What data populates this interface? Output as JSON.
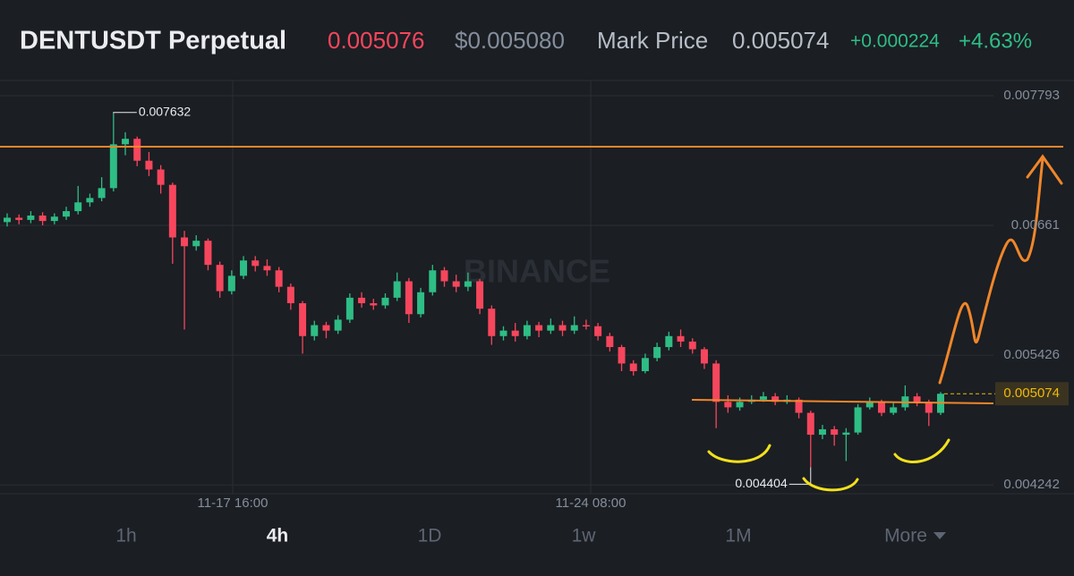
{
  "header": {
    "symbol": "DENTUSDT Perpetual",
    "last_price": "0.005076",
    "index_price": "$0.005080",
    "mark_label": "Mark Price",
    "mark_price": "0.005074",
    "change": "+0.000224",
    "change_pct": "+4.63%"
  },
  "chart_data": {
    "type": "candlestick",
    "ylim": [
      0.004162,
      0.007932
    ],
    "yticks": [
      0.007793,
      0.00661,
      0.005426,
      0.004242
    ],
    "time_labels": [
      "11-17 16:00",
      "11-24 08:00"
    ],
    "watermark": "BINANCE",
    "up_color": "#2ebd85",
    "down_color": "#f6465d",
    "high_label": 0.007632,
    "low_label": 0.004404,
    "price_tag": 0.005074,
    "ohlc": [
      [
        0.00664,
        0.00672,
        0.0066,
        0.00668
      ],
      [
        0.00668,
        0.00671,
        0.00662,
        0.00666
      ],
      [
        0.00666,
        0.00674,
        0.00663,
        0.0067
      ],
      [
        0.0067,
        0.00673,
        0.00661,
        0.00665
      ],
      [
        0.00665,
        0.00672,
        0.00662,
        0.00669
      ],
      [
        0.00669,
        0.00678,
        0.00666,
        0.00674
      ],
      [
        0.00674,
        0.00697,
        0.00671,
        0.00682
      ],
      [
        0.00682,
        0.0069,
        0.00678,
        0.00686
      ],
      [
        0.00686,
        0.00705,
        0.00683,
        0.00695
      ],
      [
        0.00695,
        0.007632,
        0.00692,
        0.00735
      ],
      [
        0.00735,
        0.00746,
        0.00725,
        0.0074
      ],
      [
        0.0074,
        0.00742,
        0.00715,
        0.0072
      ],
      [
        0.0072,
        0.00728,
        0.00706,
        0.00712
      ],
      [
        0.00712,
        0.00716,
        0.0069,
        0.00698
      ],
      [
        0.00698,
        0.007,
        0.00626,
        0.0065
      ],
      [
        0.0065,
        0.00656,
        0.00566,
        0.00642
      ],
      [
        0.00642,
        0.00652,
        0.00638,
        0.00647
      ],
      [
        0.00647,
        0.00649,
        0.0062,
        0.00625
      ],
      [
        0.00625,
        0.00628,
        0.00595,
        0.00601
      ],
      [
        0.00601,
        0.0062,
        0.00598,
        0.00615
      ],
      [
        0.00615,
        0.00633,
        0.00612,
        0.00629
      ],
      [
        0.00629,
        0.00633,
        0.00619,
        0.00624
      ],
      [
        0.00624,
        0.0063,
        0.00615,
        0.0062
      ],
      [
        0.0062,
        0.00623,
        0.006,
        0.00605
      ],
      [
        0.00605,
        0.00608,
        0.00584,
        0.0059
      ],
      [
        0.0059,
        0.00592,
        0.00544,
        0.0056
      ],
      [
        0.0056,
        0.00574,
        0.00556,
        0.0057
      ],
      [
        0.0057,
        0.00573,
        0.00558,
        0.00565
      ],
      [
        0.00565,
        0.00579,
        0.00562,
        0.00575
      ],
      [
        0.00575,
        0.00599,
        0.00572,
        0.00595
      ],
      [
        0.00595,
        0.006,
        0.00586,
        0.0059
      ],
      [
        0.0059,
        0.00594,
        0.00584,
        0.00588
      ],
      [
        0.00588,
        0.00599,
        0.00585,
        0.00595
      ],
      [
        0.00595,
        0.00618,
        0.00592,
        0.0061
      ],
      [
        0.0061,
        0.00613,
        0.00572,
        0.0058
      ],
      [
        0.0058,
        0.00604,
        0.00577,
        0.006
      ],
      [
        0.006,
        0.00625,
        0.00597,
        0.0062
      ],
      [
        0.0062,
        0.00623,
        0.00605,
        0.0061
      ],
      [
        0.0061,
        0.00616,
        0.006,
        0.00605
      ],
      [
        0.00605,
        0.00618,
        0.00601,
        0.0061
      ],
      [
        0.0061,
        0.00612,
        0.0058,
        0.00585
      ],
      [
        0.00585,
        0.00588,
        0.00552,
        0.0056
      ],
      [
        0.0056,
        0.00569,
        0.00556,
        0.00565
      ],
      [
        0.00565,
        0.00572,
        0.00555,
        0.0056
      ],
      [
        0.0056,
        0.00574,
        0.00557,
        0.0057
      ],
      [
        0.0057,
        0.00573,
        0.00559,
        0.00565
      ],
      [
        0.00565,
        0.00576,
        0.00562,
        0.0057
      ],
      [
        0.0057,
        0.00574,
        0.0056,
        0.00565
      ],
      [
        0.00565,
        0.00578,
        0.00562,
        0.0057
      ],
      [
        0.0057,
        0.00575,
        0.00566,
        0.00569
      ],
      [
        0.00569,
        0.00572,
        0.00556,
        0.0056
      ],
      [
        0.0056,
        0.00563,
        0.00546,
        0.0055
      ],
      [
        0.0055,
        0.00552,
        0.00528,
        0.00535
      ],
      [
        0.00535,
        0.00538,
        0.00524,
        0.00528
      ],
      [
        0.00528,
        0.00544,
        0.00526,
        0.0054
      ],
      [
        0.0054,
        0.00554,
        0.00537,
        0.0055
      ],
      [
        0.0055,
        0.00564,
        0.00547,
        0.0056
      ],
      [
        0.0056,
        0.00566,
        0.0055,
        0.00555
      ],
      [
        0.00555,
        0.00558,
        0.00544,
        0.00548
      ],
      [
        0.00548,
        0.0055,
        0.0053,
        0.00535
      ],
      [
        0.00535,
        0.00538,
        0.00476,
        0.005
      ],
      [
        0.005,
        0.00506,
        0.0049,
        0.00495
      ],
      [
        0.00495,
        0.00504,
        0.00492,
        0.005
      ],
      [
        0.005,
        0.00506,
        0.00498,
        0.00502
      ],
      [
        0.00502,
        0.00509,
        0.005,
        0.00505
      ],
      [
        0.00505,
        0.00508,
        0.00497,
        0.005
      ],
      [
        0.005,
        0.00506,
        0.00498,
        0.00502
      ],
      [
        0.00502,
        0.00504,
        0.00485,
        0.0049
      ],
      [
        0.0049,
        0.00492,
        0.004404,
        0.0047
      ],
      [
        0.0047,
        0.00479,
        0.00466,
        0.00475
      ],
      [
        0.00475,
        0.00478,
        0.0046,
        0.0047
      ],
      [
        0.0047,
        0.00476,
        0.00446,
        0.00472
      ],
      [
        0.00472,
        0.00498,
        0.0047,
        0.00495
      ],
      [
        0.00495,
        0.00504,
        0.00493,
        0.005
      ],
      [
        0.005,
        0.00502,
        0.00487,
        0.0049
      ],
      [
        0.0049,
        0.00499,
        0.00488,
        0.00495
      ],
      [
        0.00495,
        0.00515,
        0.00492,
        0.00505
      ],
      [
        0.00505,
        0.00508,
        0.00496,
        0.005
      ],
      [
        0.005,
        0.00502,
        0.00478,
        0.0049
      ],
      [
        0.0049,
        0.00509,
        0.00488,
        0.005074
      ]
    ]
  },
  "tabs": [
    "1h",
    "4h",
    "1D",
    "1w",
    "1M",
    "More"
  ]
}
